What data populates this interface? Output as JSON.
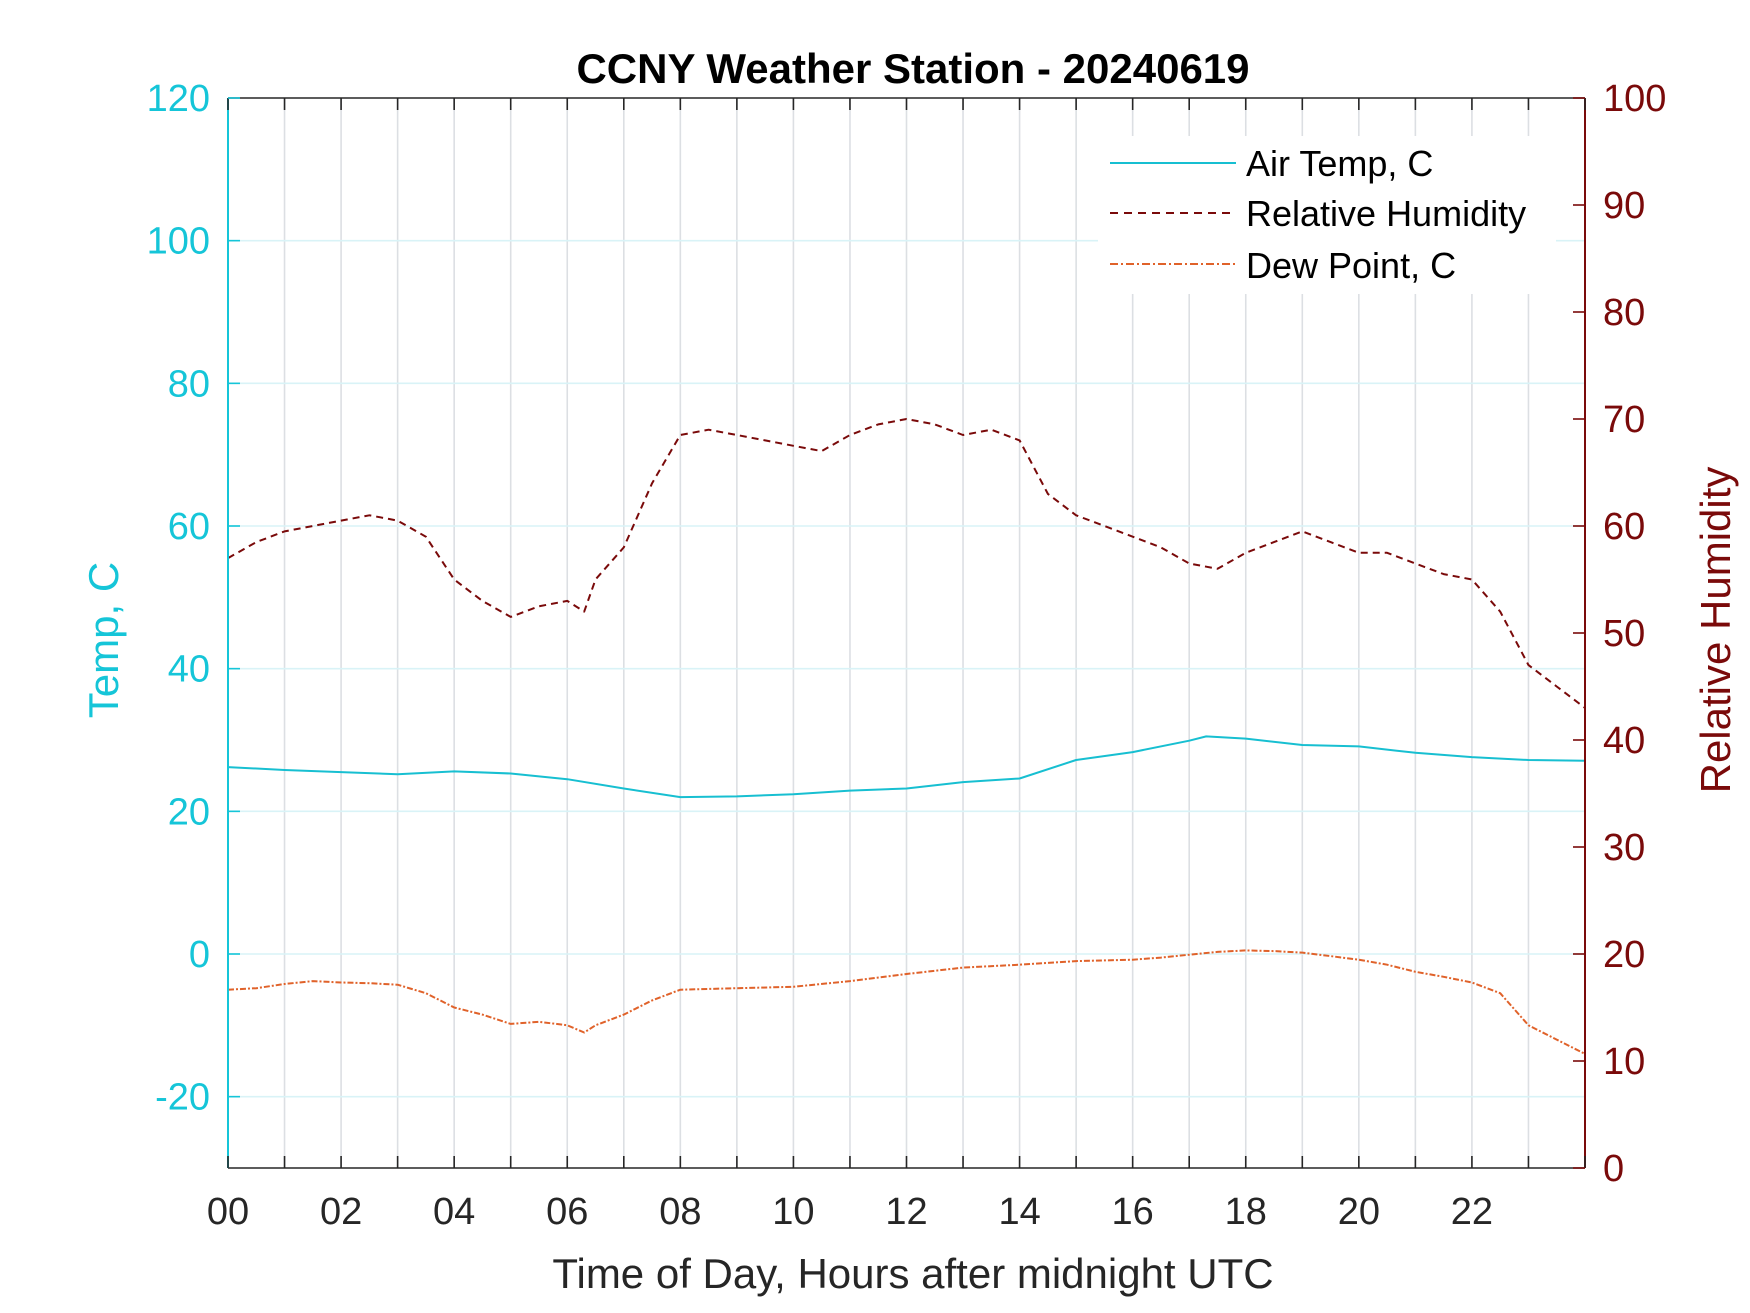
{
  "colors": {
    "air_temp": "#17bfd1",
    "humidity": "#7a0a0a",
    "dew_point": "#e0622a",
    "left_axis": "#15c5d8",
    "right_axis": "#7a0a0a"
  },
  "chart_data": {
    "type": "line",
    "title": "CCNY Weather Station - 20240619",
    "xlabel": "Time of Day, Hours after midnight UTC",
    "ylabel_left": "Temp, C",
    "ylabel_right": "Relative Humidity",
    "xlim": [
      0,
      24
    ],
    "ylim_left": [
      -30,
      120
    ],
    "ylim_right": [
      0,
      100
    ],
    "x_ticks": [
      0,
      2,
      4,
      6,
      8,
      10,
      12,
      14,
      16,
      18,
      20,
      22
    ],
    "x_tick_labels": [
      "00",
      "02",
      "04",
      "06",
      "08",
      "10",
      "12",
      "14",
      "16",
      "18",
      "20",
      "22"
    ],
    "y_left_ticks": [
      -20,
      0,
      20,
      40,
      60,
      80,
      100,
      120
    ],
    "y_left_tick_labels": [
      "-20",
      "0",
      "20",
      "40",
      "60",
      "80",
      "100",
      "120"
    ],
    "y_right_ticks": [
      0,
      10,
      20,
      30,
      40,
      50,
      60,
      70,
      80,
      90,
      100
    ],
    "y_right_tick_labels": [
      "0",
      "10",
      "20",
      "30",
      "40",
      "50",
      "60",
      "70",
      "80",
      "90",
      "100"
    ],
    "grid": true,
    "legend_position": "top-right",
    "series": [
      {
        "name": "Air Temp, C",
        "axis": "left",
        "style": "solid",
        "x": [
          0,
          1,
          2,
          3,
          4,
          5,
          6,
          7,
          8,
          9,
          10,
          11,
          12,
          13,
          14,
          15,
          16,
          17,
          17.3,
          18,
          19,
          20,
          21,
          22,
          23,
          24
        ],
        "y": [
          26.2,
          25.8,
          25.5,
          25.2,
          25.6,
          25.3,
          24.5,
          23.2,
          22.0,
          22.1,
          22.4,
          22.9,
          23.2,
          24.1,
          24.6,
          27.2,
          28.3,
          29.9,
          30.5,
          30.2,
          29.3,
          29.1,
          28.2,
          27.6,
          27.2,
          27.1
        ]
      },
      {
        "name": "Relative Humidity",
        "axis": "right",
        "style": "dashed",
        "x": [
          0,
          0.5,
          1,
          1.5,
          2,
          2.5,
          3,
          3.5,
          4,
          4.5,
          5,
          5.5,
          6,
          6.3,
          6.5,
          7,
          7.5,
          8,
          8.5,
          9,
          9.5,
          10,
          10.5,
          11,
          11.5,
          12,
          12.5,
          13,
          13.5,
          14,
          14.5,
          15,
          15.5,
          16,
          16.5,
          17,
          17.5,
          18,
          18.5,
          19,
          19.5,
          20,
          20.5,
          21,
          21.5,
          22,
          22.5,
          23,
          23.5,
          24
        ],
        "y": [
          57,
          58.5,
          59.5,
          60,
          60.5,
          61,
          60.5,
          59,
          55,
          53,
          51.5,
          52.5,
          53,
          52,
          55,
          58,
          64,
          68.5,
          69,
          68.5,
          68,
          67.5,
          67,
          68.5,
          69.5,
          70,
          69.5,
          68.5,
          69,
          68,
          63,
          61,
          60,
          59,
          58,
          56.5,
          56,
          57.5,
          58.5,
          59.5,
          58.5,
          57.5,
          57.5,
          56.5,
          55.5,
          55,
          52,
          47,
          45,
          43
        ]
      },
      {
        "name": "Dew Point, C",
        "axis": "left",
        "style": "dash-dot",
        "x": [
          0,
          0.5,
          1,
          1.5,
          2,
          2.5,
          3,
          3.5,
          4,
          4.5,
          5,
          5.5,
          6,
          6.3,
          6.5,
          7,
          7.5,
          8,
          9,
          10,
          11,
          12,
          13,
          14,
          15,
          16,
          16.5,
          17,
          17.5,
          18,
          18.5,
          19,
          19.5,
          20,
          20.5,
          21,
          21.5,
          22,
          22.5,
          23,
          23.5,
          24
        ],
        "y": [
          -5,
          -4.8,
          -4.2,
          -3.8,
          -4,
          -4.1,
          -4.3,
          -5.5,
          -7.5,
          -8.5,
          -9.8,
          -9.5,
          -10,
          -11,
          -10,
          -8.5,
          -6.5,
          -5,
          -4.8,
          -4.6,
          -3.8,
          -2.8,
          -1.9,
          -1.5,
          -1,
          -0.8,
          -0.5,
          -0.1,
          0.3,
          0.5,
          0.4,
          0.2,
          -0.3,
          -0.8,
          -1.5,
          -2.5,
          -3.2,
          -4,
          -5.5,
          -10,
          -12,
          -14
        ]
      }
    ]
  }
}
